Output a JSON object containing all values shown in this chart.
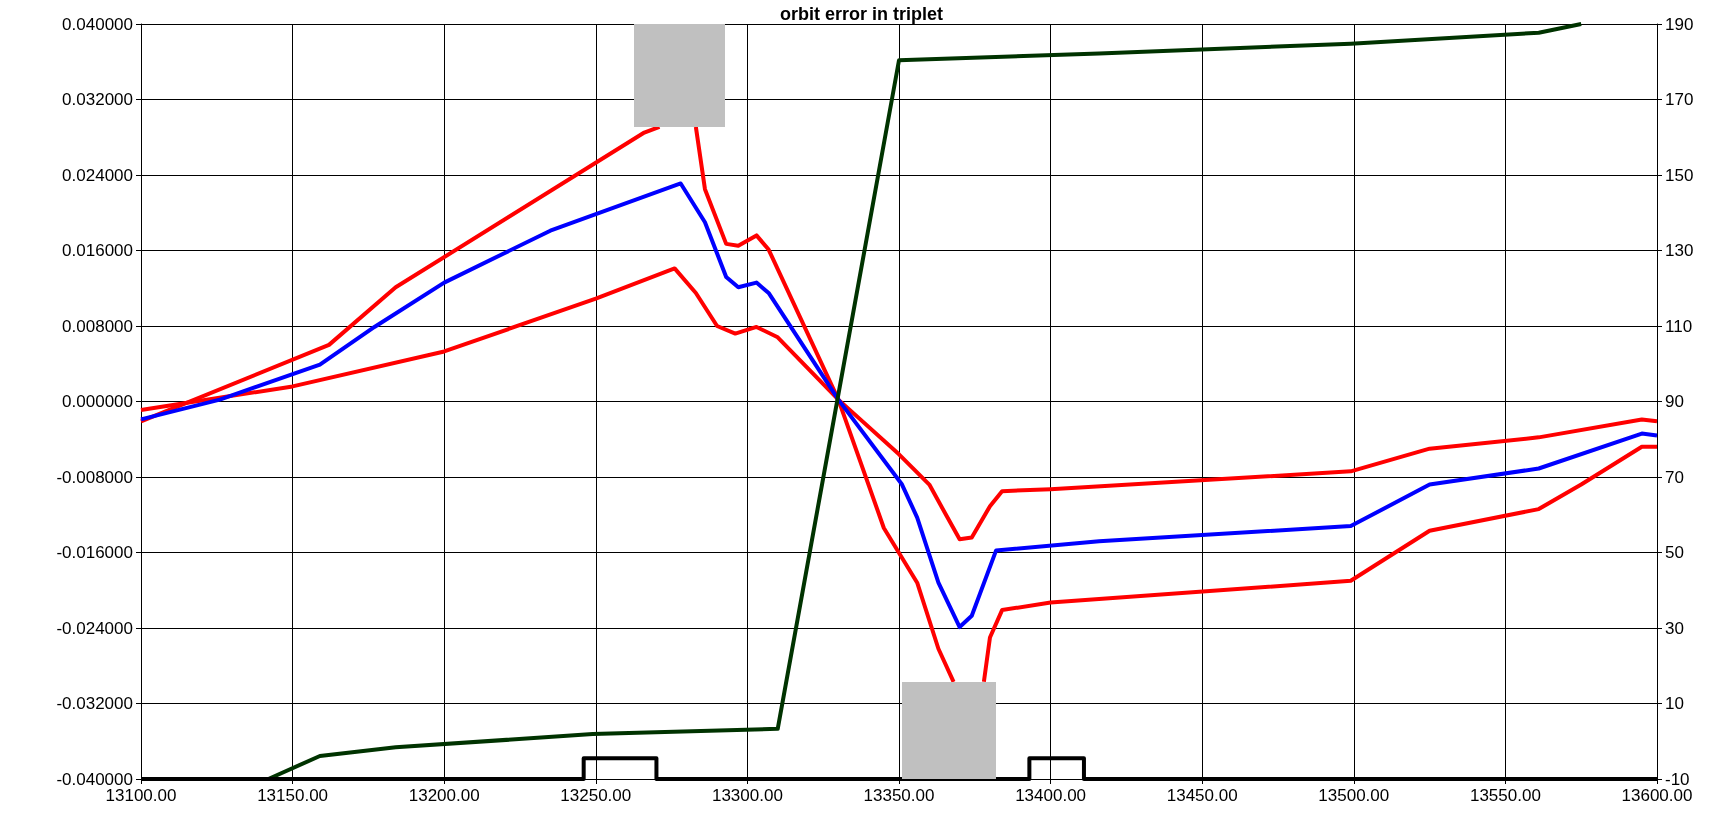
{
  "chart_data": {
    "type": "line",
    "title": "orbit error in triplet",
    "xlim": [
      13100,
      13600
    ],
    "xticks": [
      {
        "value": 13100,
        "label": "13100.00"
      },
      {
        "value": 13150,
        "label": "13150.00"
      },
      {
        "value": 13200,
        "label": "13200.00"
      },
      {
        "value": 13250,
        "label": "13250.00"
      },
      {
        "value": 13300,
        "label": "13300.00"
      },
      {
        "value": 13350,
        "label": "13350.00"
      },
      {
        "value": 13400,
        "label": "13400.00"
      },
      {
        "value": 13450,
        "label": "13450.00"
      },
      {
        "value": 13500,
        "label": "13500.00"
      },
      {
        "value": 13550,
        "label": "13550.00"
      },
      {
        "value": 13600,
        "label": "13600.00"
      }
    ],
    "ylim": [
      -0.04,
      0.04
    ],
    "yticks": [
      {
        "value": -0.04,
        "label": "-0.040000"
      },
      {
        "value": -0.032,
        "label": "-0.032000"
      },
      {
        "value": -0.024,
        "label": "-0.024000"
      },
      {
        "value": -0.016,
        "label": "-0.016000"
      },
      {
        "value": -0.008,
        "label": "-0.008000"
      },
      {
        "value": 0,
        "label": "0.000000"
      },
      {
        "value": 0.008,
        "label": "0.008000"
      },
      {
        "value": 0.016,
        "label": "0.016000"
      },
      {
        "value": 0.024,
        "label": "0.024000"
      },
      {
        "value": 0.032,
        "label": "0.032000"
      },
      {
        "value": 0.04,
        "label": "0.040000"
      }
    ],
    "y2lim": [
      -10,
      190
    ],
    "y2ticks": [
      -10,
      10,
      30,
      50,
      70,
      90,
      110,
      130,
      150,
      170,
      190
    ],
    "grid": true,
    "marker": "none",
    "line_style": "solid",
    "series": [
      {
        "color": "#ff0000",
        "x": [
          13100,
          13162,
          13184,
          13266,
          13271,
          13280,
          13283,
          13286,
          13293,
          13297,
          13303,
          13307,
          13330,
          13345,
          13356,
          13363,
          13368,
          13370,
          13378,
          13380,
          13384,
          13400,
          13499,
          13525,
          13561,
          13575,
          13595,
          13600
        ],
        "values": [
          -0.0021,
          0.006,
          0.0121,
          0.0285,
          0.0291,
          null,
          0.0291,
          0.0225,
          0.0167,
          0.0165,
          0.0176,
          0.0161,
          0.0002,
          -0.0134,
          -0.0192,
          -0.0262,
          -0.0297,
          null,
          -0.0297,
          -0.025,
          -0.0221,
          -0.0213,
          -0.019,
          -0.0137,
          -0.0114,
          -0.0088,
          -0.0048,
          -0.0048
        ]
      },
      {
        "color": "#ff0000",
        "x": [
          13100,
          13150,
          13200,
          13250,
          13276,
          13283,
          13290,
          13296,
          13303,
          13310,
          13330,
          13350,
          13360,
          13366,
          13370,
          13374,
          13380,
          13384,
          13400,
          13499,
          13525,
          13561,
          13595,
          13600
        ],
        "values": [
          -0.0009,
          0.0016,
          0.0053,
          0.0109,
          0.0141,
          0.0115,
          0.008,
          0.0072,
          0.0079,
          0.0068,
          0.0002,
          -0.0056,
          -0.0088,
          -0.0123,
          -0.0146,
          -0.0144,
          -0.0111,
          -0.0095,
          -0.0093,
          -0.0074,
          -0.005,
          -0.0038,
          -0.0019,
          -0.0021
        ]
      },
      {
        "color": "#0000ff",
        "x": [
          13100,
          13126,
          13159,
          13177,
          13200,
          13235,
          13278,
          13286,
          13293,
          13297,
          13303,
          13307,
          13330,
          13351,
          13356,
          13363,
          13370,
          13374,
          13382,
          13416,
          13499,
          13525,
          13561,
          13595,
          13600
        ],
        "values": [
          -0.0019,
          0.0002,
          0.0039,
          0.0079,
          0.0126,
          0.0181,
          0.0231,
          0.019,
          0.0132,
          0.0121,
          0.0126,
          0.0115,
          0.0002,
          -0.0088,
          -0.0123,
          -0.0192,
          -0.0239,
          -0.0227,
          -0.0158,
          -0.0148,
          -0.0132,
          -0.0088,
          -0.0071,
          -0.0034,
          -0.0036
        ]
      },
      {
        "color": "#003300",
        "axis": "y2",
        "x": [
          13142,
          13159,
          13184,
          13249,
          13310,
          13350,
          13416,
          13499,
          13561,
          13575
        ],
        "values": [
          -10,
          -3.9,
          -1.6,
          1.9,
          3.3,
          180.4,
          182.2,
          184.8,
          187.7,
          190
        ]
      },
      {
        "color": "#000000",
        "axis": "y2",
        "x": [
          13100,
          13246,
          13246,
          13270,
          13270,
          13393,
          13393,
          13411,
          13411,
          13600
        ],
        "values": [
          -10,
          -10,
          -4.5,
          -4.5,
          -10,
          -10,
          -4.5,
          -4.5,
          -10,
          -10
        ]
      }
    ]
  }
}
